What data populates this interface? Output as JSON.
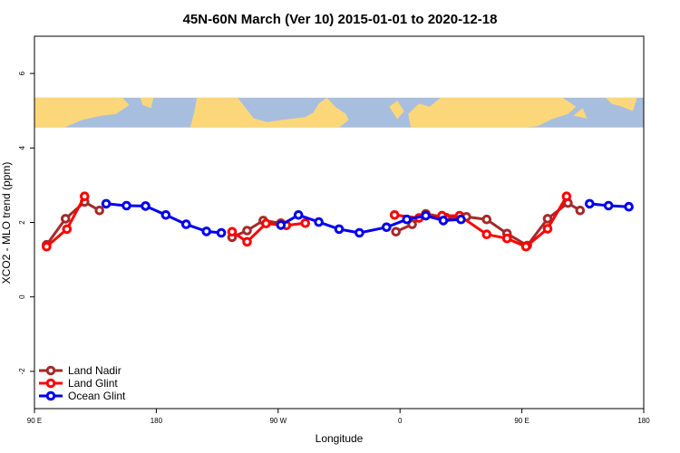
{
  "chart_data": {
    "type": "line",
    "title": "45N-60N March (Ver 10)   2015-01-01 to 2020-12-18",
    "xlabel": "Longitude",
    "ylabel": "XCO2 - MLO trend (ppm)",
    "xlim": [
      90,
      540
    ],
    "ylim": [
      -3,
      7
    ],
    "x_ticks": [
      {
        "value": 90,
        "label": "90 E"
      },
      {
        "value": 180,
        "label": "180"
      },
      {
        "value": 270,
        "label": "90 W"
      },
      {
        "value": 360,
        "label": "0"
      },
      {
        "value": 450,
        "label": "90 E"
      },
      {
        "value": 540,
        "label": "180"
      }
    ],
    "y_ticks": [
      {
        "value": -2,
        "label": "-2"
      },
      {
        "value": 0,
        "label": "0"
      },
      {
        "value": 2,
        "label": "2"
      },
      {
        "value": 4,
        "label": "4"
      },
      {
        "value": 6,
        "label": "6"
      }
    ],
    "legend_position": "bottom-left",
    "map_band": {
      "y_range": [
        4.55,
        5.35
      ],
      "ocean_color": "#a8bedf",
      "land_color": "#fcd77a"
    },
    "series": [
      {
        "name": "Land Nadir",
        "color": "#a52a2a",
        "segments": [
          [
            [
              99,
              1.4
            ],
            [
              113,
              2.1
            ],
            [
              127,
              2.55
            ],
            [
              138,
              2.32
            ]
          ],
          [
            [
              236,
              1.6
            ],
            [
              247,
              1.78
            ],
            [
              259,
              2.05
            ],
            [
              272,
              1.98
            ]
          ],
          [
            [
              357,
              1.75
            ],
            [
              369,
              1.95
            ],
            [
              379,
              2.23
            ],
            [
              394,
              2.13
            ],
            [
              409,
              2.15
            ],
            [
              424,
              2.08
            ],
            [
              439,
              1.7
            ],
            [
              454,
              1.38
            ],
            [
              469,
              2.1
            ],
            [
              484,
              2.52
            ],
            [
              493,
              2.32
            ]
          ]
        ]
      },
      {
        "name": "Land Glint",
        "color": "#ff0000",
        "segments": [
          [
            [
              99,
              1.35
            ],
            [
              114,
              1.82
            ],
            [
              127,
              2.7
            ]
          ],
          [
            [
              236,
              1.75
            ],
            [
              247,
              1.48
            ],
            [
              261,
              1.97
            ],
            [
              276,
              1.92
            ],
            [
              290,
              1.98
            ]
          ],
          [
            [
              356,
              2.2
            ],
            [
              374,
              2.12
            ],
            [
              391,
              2.18
            ],
            [
              404,
              2.18
            ],
            [
              424,
              1.68
            ],
            [
              439,
              1.57
            ],
            [
              453,
              1.35
            ],
            [
              469,
              1.83
            ],
            [
              483,
              2.7
            ]
          ]
        ]
      },
      {
        "name": "Ocean Glint",
        "color": "#0000ee",
        "segments": [
          [
            [
              143,
              2.5
            ],
            [
              158,
              2.45
            ],
            [
              172,
              2.44
            ],
            [
              187,
              2.2
            ],
            [
              202,
              1.95
            ],
            [
              217,
              1.76
            ],
            [
              228,
              1.72
            ]
          ],
          [
            [
              272,
              1.93
            ],
            [
              285,
              2.2
            ],
            [
              300,
              2.01
            ],
            [
              315,
              1.82
            ],
            [
              330,
              1.72
            ],
            [
              350,
              1.87
            ],
            [
              365,
              2.08
            ],
            [
              379,
              2.18
            ],
            [
              392,
              2.05
            ],
            [
              405,
              2.08
            ]
          ],
          [
            [
              500,
              2.5
            ],
            [
              514,
              2.45
            ],
            [
              529,
              2.42
            ]
          ]
        ]
      }
    ]
  }
}
